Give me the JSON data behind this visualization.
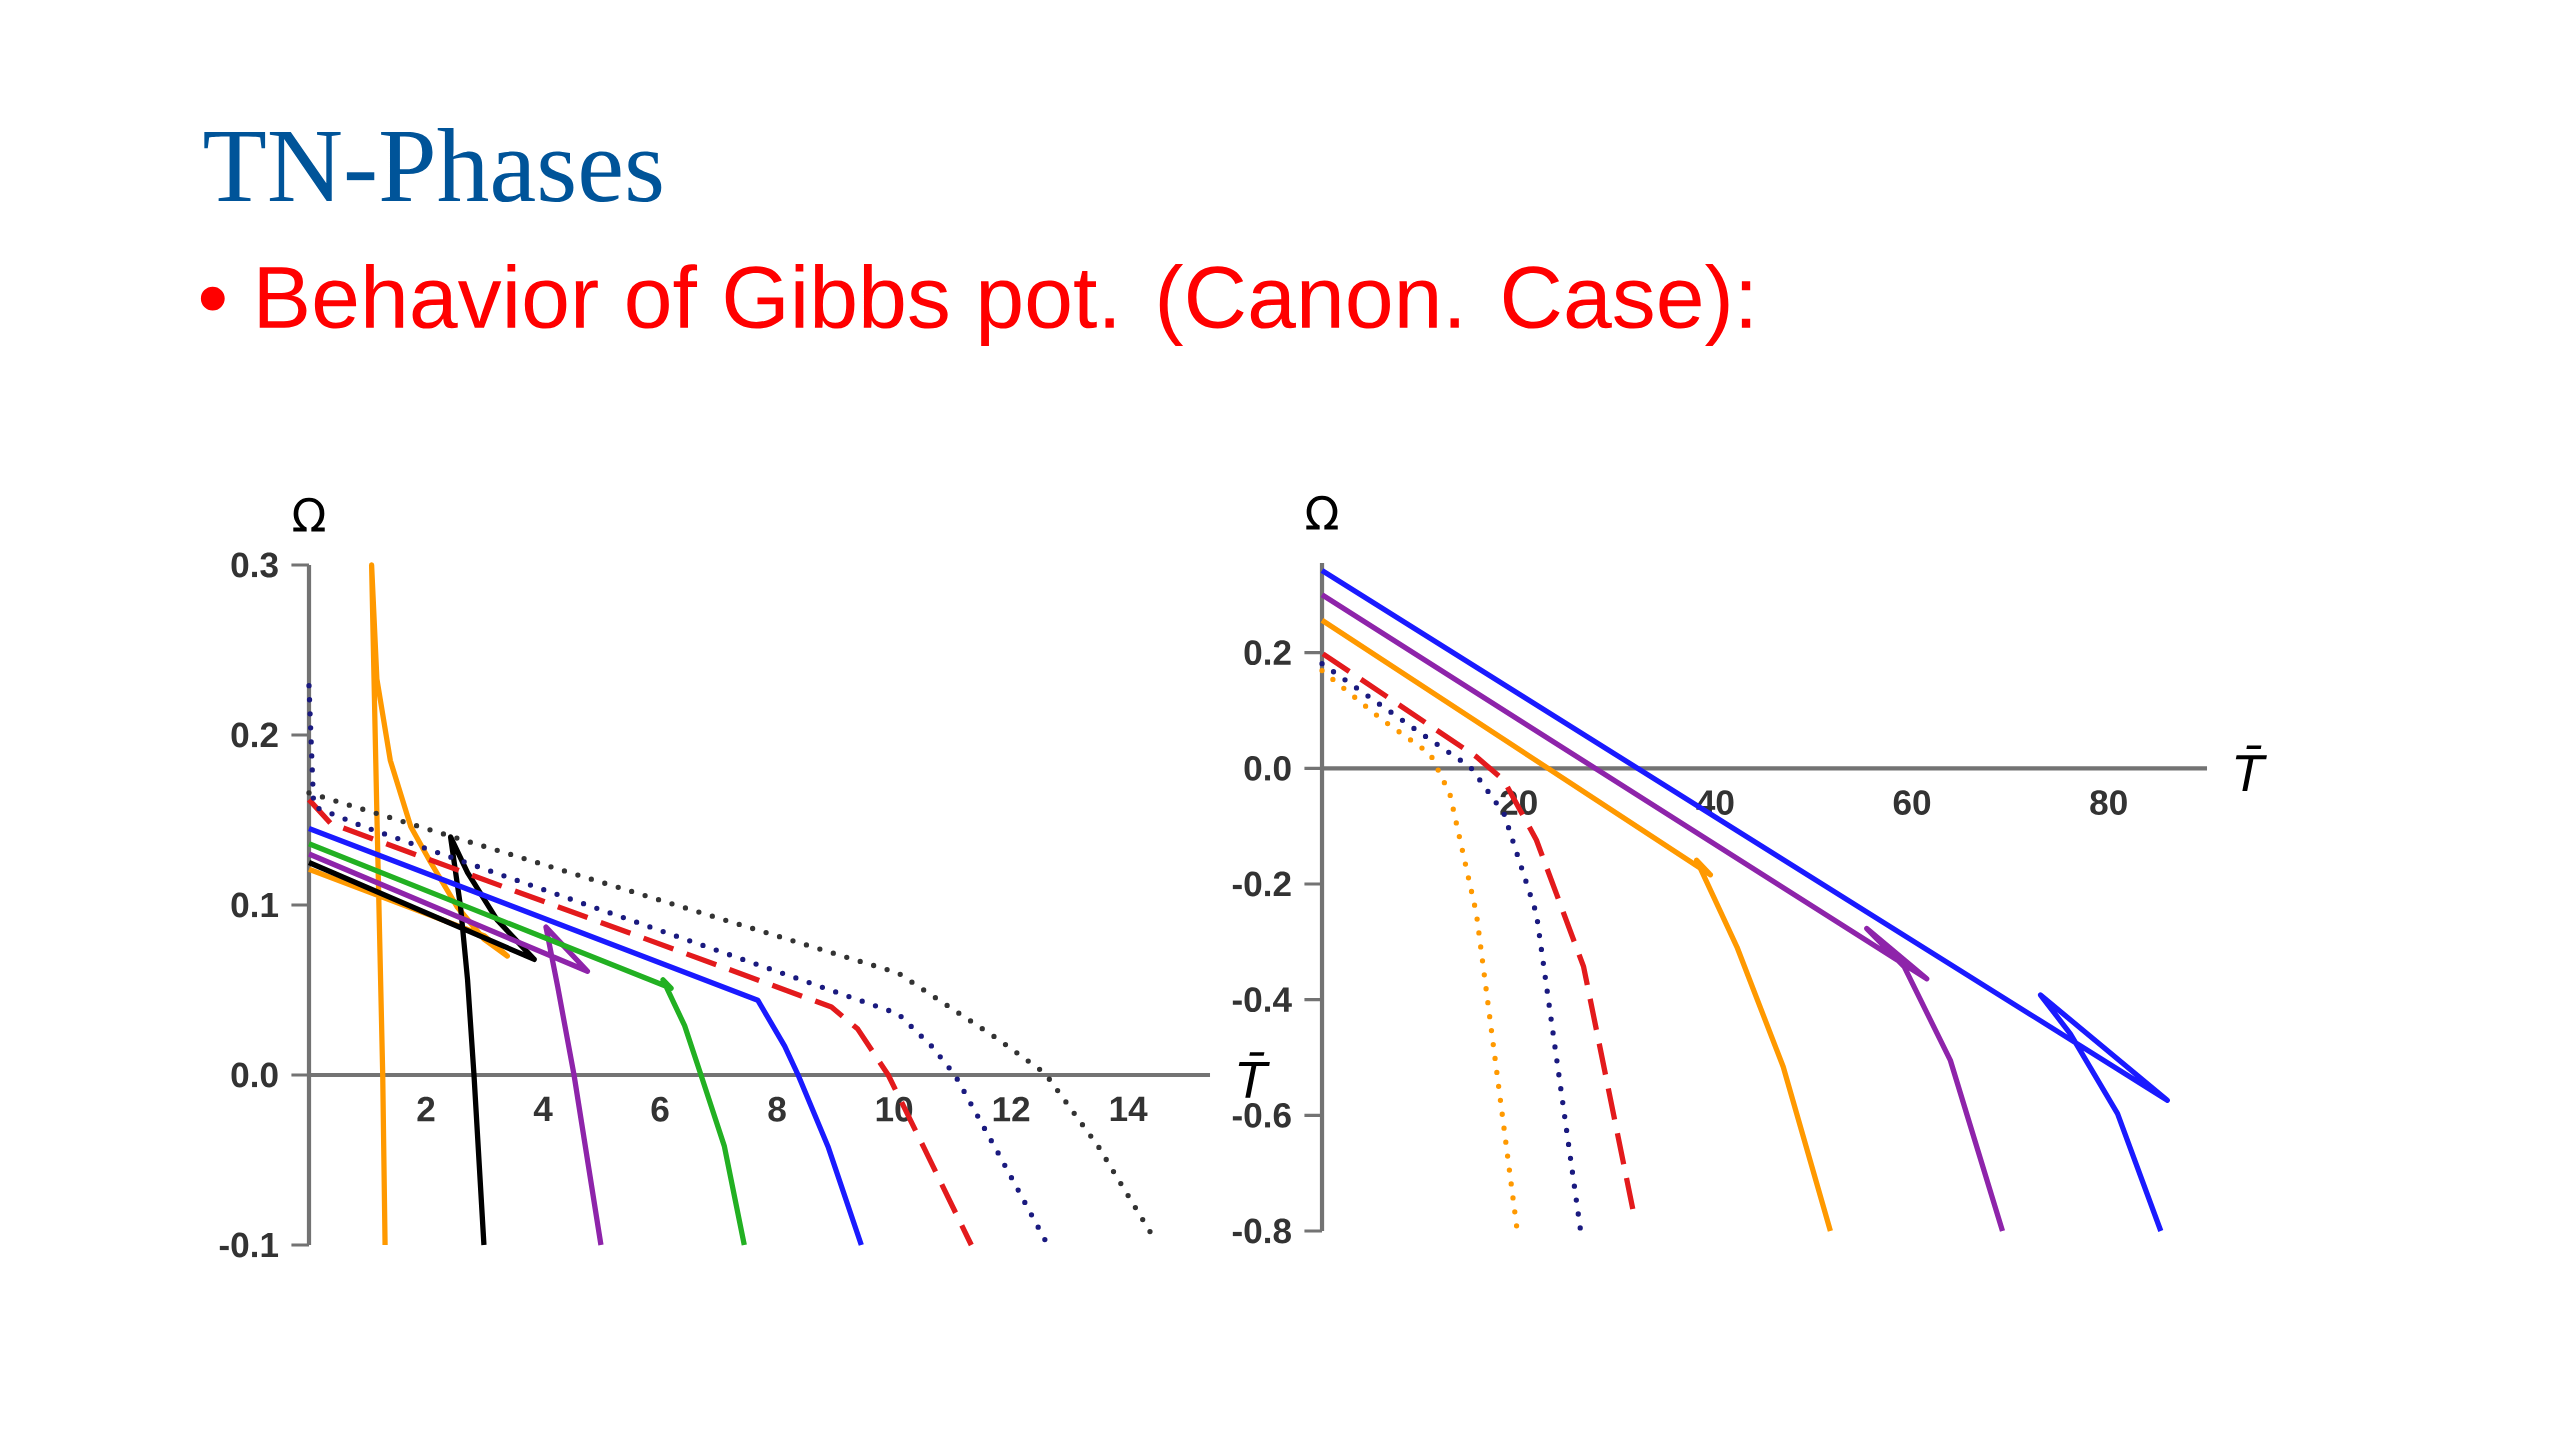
{
  "chart_data": [
    {
      "type": "line",
      "title": "TN-Phases",
      "subtitle": "• Behavior of Gibbs pot. (Canon. Case):",
      "xlabel": "T̄",
      "ylabel": "Ω",
      "xlim": [
        0,
        15.4
      ],
      "ylim": [
        -0.1,
        0.3
      ],
      "xticks": [
        2,
        4,
        6,
        8,
        10,
        12,
        14
      ],
      "yticks": [
        -0.1,
        {
          "value": 0,
          "label": "0.0"
        },
        0.1,
        0.2,
        0.3
      ],
      "series": [
        {
          "color": "#ff9900",
          "line_style": "solid",
          "x": [
            0,
            2.99,
            3.39,
            2.99,
            2.53,
            2.08,
            1.74,
            1.39,
            1.16,
            1.07,
            1.16,
            1.26,
            1.3
          ],
          "values": [
            0.121,
            0.082,
            0.07,
            0.08,
            0.099,
            0.125,
            0.146,
            0.185,
            0.233,
            0.3,
            0.154,
            0,
            -0.1
          ]
        },
        {
          "color": "#000000",
          "line_style": "solid",
          "x": [
            0,
            3.85,
            3.22,
            2.71,
            2.42,
            2.59,
            2.71,
            2.82,
            2.99
          ],
          "values": [
            0.125,
            0.068,
            0.091,
            0.119,
            0.14,
            0.099,
            0.056,
            0,
            -0.1
          ]
        },
        {
          "color": "#8e24aa",
          "line_style": "solid",
          "x": [
            0,
            4.76,
            4.05,
            4.25,
            4.53,
            4.99
          ],
          "values": [
            0.13,
            0.061,
            0.087,
            0.052,
            0,
            -0.1
          ]
        },
        {
          "color": "#22b022",
          "line_style": "solid",
          "x": [
            0,
            6.19,
            6.05,
            6.42,
            6.7,
            7.1,
            7.44
          ],
          "values": [
            0.136,
            0.051,
            0.056,
            0.029,
            0,
            -0.042,
            -0.1
          ]
        },
        {
          "color": "#1a1aff",
          "line_style": "solid",
          "x": [
            0,
            7.67,
            8.13,
            8.36,
            8.87,
            9.44
          ],
          "values": [
            0.145,
            0.044,
            0.017,
            0,
            -0.042,
            -0.1
          ]
        },
        {
          "color": "#e31a1c",
          "line_style": "dashed",
          "x": [
            0,
            0.37,
            8.93,
            9.38,
            9.9,
            10.5,
            11.32
          ],
          "values": [
            0.162,
            0.148,
            0.04,
            0.027,
            0,
            -0.042,
            -0.1
          ]
        },
        {
          "color": "#1a1a7f",
          "line_style": "dotted",
          "x": [
            0,
            0.08,
            0.94,
            10.07,
            10.64,
            11.04,
            11.78,
            12.58
          ],
          "values": [
            0.229,
            0.158,
            0.146,
            0.036,
            0.017,
            0,
            -0.046,
            -0.097
          ]
        },
        {
          "color": "#333333",
          "line_style": "dotted",
          "x": [
            0,
            10.07,
            11.78,
            12.58,
            13.49,
            14.46
          ],
          "values": [
            0.166,
            0.06,
            0.021,
            0.001,
            -0.042,
            -0.097
          ]
        }
      ]
    },
    {
      "type": "line",
      "xlabel": "T̄",
      "ylabel": "Ω",
      "xlim": [
        0,
        90
      ],
      "ylim": [
        -0.8,
        0.355
      ],
      "xticks": [
        20,
        40,
        60,
        80
      ],
      "yticks": [
        -0.8,
        -0.6,
        -0.4,
        -0.2,
        {
          "value": 0,
          "label": "0.0"
        },
        0.2
      ],
      "series": [
        {
          "color": "#1a1aff",
          "line_style": "solid",
          "x": [
            0,
            85.96,
            73.07,
            76.1,
            80.9,
            85.3
          ],
          "values": [
            0.342,
            -0.574,
            -0.392,
            -0.459,
            -0.597,
            -0.8
          ]
        },
        {
          "color": "#8e24aa",
          "line_style": "solid",
          "x": [
            0,
            61.5,
            55.4,
            59.2,
            63.9,
            69.2
          ],
          "values": [
            0.3,
            -0.364,
            -0.277,
            -0.343,
            -0.505,
            -0.8
          ]
        },
        {
          "color": "#ff9900",
          "line_style": "solid",
          "x": [
            0,
            39.5,
            38.1,
            42.2,
            46.9,
            51.7
          ],
          "values": [
            0.256,
            -0.184,
            -0.159,
            -0.309,
            -0.516,
            -0.8
          ]
        },
        {
          "color": "#e31a1c",
          "line_style": "dashed",
          "x": [
            0.1,
            15.7,
            18.5,
            21.8,
            26.6,
            31.7
          ],
          "values": [
            0.198,
            0.02,
            -0.021,
            -0.124,
            -0.343,
            -0.77
          ]
        },
        {
          "color": "#1a1a7f",
          "line_style": "dotted",
          "x": [
            0,
            9.6,
            15.1,
            18.5,
            21.8,
            26.3
          ],
          "values": [
            0.181,
            0.066,
            0.002,
            -0.078,
            -0.251,
            -0.8
          ]
        },
        {
          "color": "#ff9900",
          "line_style": "dotted",
          "x": [
            0,
            6.2,
            11,
            13,
            15.7,
            19.8
          ],
          "values": [
            0.169,
            0.083,
            0.025,
            -0.044,
            -0.251,
            -0.793
          ]
        }
      ]
    }
  ]
}
